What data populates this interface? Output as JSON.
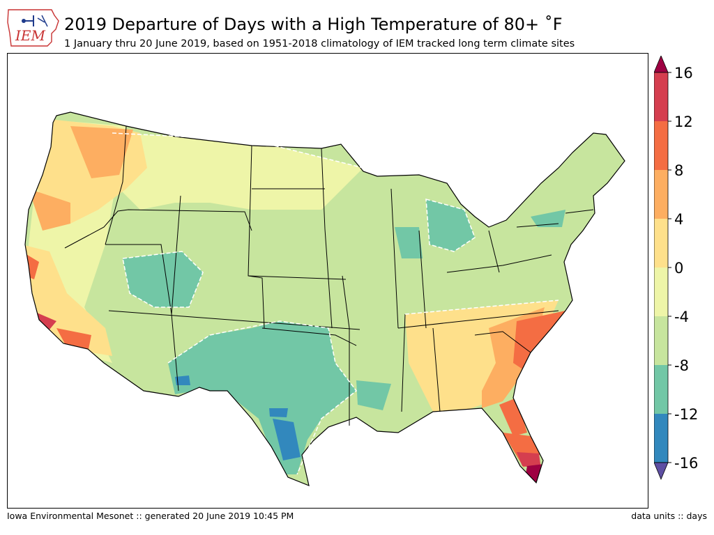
{
  "header": {
    "logo_text": "IEM",
    "title": "2019 Departure of Days with a High Temperature of 80+ ˚F",
    "subtitle": "1 January thru 20 June 2019, based on 1951-2018 climatology of IEM tracked long term climate sites"
  },
  "footer": {
    "left": "Iowa Environmental Mesonet :: generated 20 June 2019 10:45 PM",
    "right": "data units :: days"
  },
  "colorbar": {
    "ticks": [
      "16",
      "12",
      "8",
      "4",
      "0",
      "-4",
      "-8",
      "-12",
      "-16"
    ],
    "bins": [
      {
        "range": "12 to 16",
        "color": "#d53e4f"
      },
      {
        "range": "8 to 12",
        "color": "#f46d43"
      },
      {
        "range": "4 to 8",
        "color": "#fdae61"
      },
      {
        "range": "0 to 4",
        "color": "#fee08b"
      },
      {
        "range": "-4 to 0",
        "color": "#eef5a8"
      },
      {
        "range": "-8 to -4",
        "color": "#c7e59e"
      },
      {
        "range": "-12 to -8",
        "color": "#72c7a6"
      },
      {
        "range": "-16 to -12",
        "color": "#3288bd"
      }
    ],
    "over_color": "#9e0142",
    "under_color": "#5e4fa2"
  }
}
